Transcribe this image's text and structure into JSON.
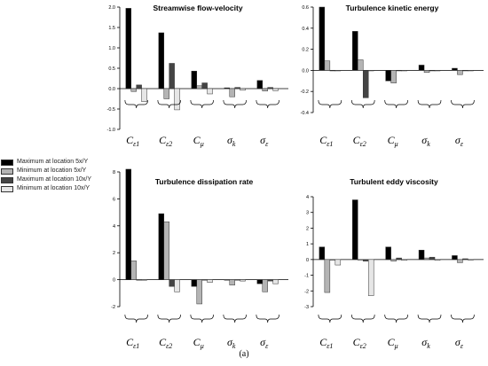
{
  "colors": {
    "max_5": "#000000",
    "min_5": "#b4b4b4",
    "max_10": "#444444",
    "min_10": "#e6e6e6"
  },
  "legend": [
    {
      "label": "Maximum at location 5x/Y",
      "color": "#000000"
    },
    {
      "label": "Minimum at location 5x/Y",
      "color": "#b4b4b4"
    },
    {
      "label": "Maximum at location 10x/Y",
      "color": "#444444"
    },
    {
      "label": "Minimum at location 10x/Y",
      "color": "#e6e6e6"
    }
  ],
  "caption": "(a)",
  "chart_data": [
    {
      "type": "bar",
      "title": "Streamwise flow-velocity",
      "categories": [
        "Cε1",
        "Cε2",
        "Cμ",
        "σk",
        "σε"
      ],
      "ylim": [
        -1.0,
        2.0
      ],
      "yticks": [
        "-1.0",
        "-0.5",
        "0.0",
        "0.5",
        "1.0",
        "1.5",
        "2.0"
      ],
      "series": [
        {
          "name": "Maximum at location 5x/Y",
          "values": [
            1.97,
            1.37,
            0.43,
            0.02,
            0.2
          ]
        },
        {
          "name": "Minimum at location 5x/Y",
          "values": [
            -0.07,
            -0.25,
            0.07,
            -0.2,
            -0.06
          ]
        },
        {
          "name": "Maximum at location 10x/Y",
          "values": [
            0.09,
            0.62,
            0.14,
            0.03,
            0.03
          ]
        },
        {
          "name": "Minimum at location 10x/Y",
          "values": [
            -0.32,
            -0.52,
            -0.13,
            -0.04,
            -0.05
          ]
        }
      ]
    },
    {
      "type": "bar",
      "title": "Turbulence kinetic energy",
      "categories": [
        "Cε1",
        "Cε2",
        "Cμ",
        "σk",
        "σε"
      ],
      "ylim": [
        -0.4,
        0.6
      ],
      "yticks": [
        "-0.4",
        "-0.2",
        "0.0",
        "0.2",
        "0.4",
        "0.6"
      ],
      "series": [
        {
          "name": "Maximum at location 5x/Y",
          "values": [
            0.6,
            0.37,
            -0.1,
            0.05,
            0.02
          ]
        },
        {
          "name": "Minimum at location 5x/Y",
          "values": [
            0.09,
            0.1,
            -0.12,
            -0.02,
            -0.04
          ]
        },
        {
          "name": "Maximum at location 10x/Y",
          "values": [
            0.0,
            -0.26,
            0.0,
            0.0,
            0.0
          ]
        },
        {
          "name": "Minimum at location 10x/Y",
          "values": [
            0.0,
            0.0,
            0.0,
            0.0,
            0.0
          ]
        }
      ]
    },
    {
      "type": "bar",
      "title": "Turbulence dissipation rate",
      "categories": [
        "Cε1",
        "Cε2",
        "Cμ",
        "σk",
        "σε"
      ],
      "ylim": [
        -2,
        8
      ],
      "yticks": [
        "-2",
        "0",
        "2",
        "4",
        "6",
        "8"
      ],
      "series": [
        {
          "name": "Maximum at location 5x/Y",
          "values": [
            8.2,
            4.9,
            -0.5,
            0.0,
            -0.3
          ]
        },
        {
          "name": "Minimum at location 5x/Y",
          "values": [
            1.4,
            4.3,
            -1.8,
            -0.4,
            -0.9
          ]
        },
        {
          "name": "Maximum at location 10x/Y",
          "values": [
            0.0,
            -0.5,
            0.0,
            0.0,
            -0.1
          ]
        },
        {
          "name": "Minimum at location 10x/Y",
          "values": [
            0.0,
            -0.9,
            -0.2,
            -0.1,
            -0.3
          ]
        }
      ]
    },
    {
      "type": "bar",
      "title": "Turbulent eddy viscosity",
      "categories": [
        "Cε1",
        "Cε2",
        "Cμ",
        "σk",
        "σε"
      ],
      "ylim": [
        -3,
        4
      ],
      "yticks": [
        "-3",
        "-2",
        "-1",
        "0",
        "1",
        "2",
        "3",
        "4"
      ],
      "series": [
        {
          "name": "Maximum at location 5x/Y",
          "values": [
            0.8,
            3.8,
            0.8,
            0.6,
            0.25
          ]
        },
        {
          "name": "Minimum at location 5x/Y",
          "values": [
            -2.1,
            0.0,
            -0.1,
            0.1,
            -0.2
          ]
        },
        {
          "name": "Maximum at location 10x/Y",
          "values": [
            0.0,
            -0.1,
            0.1,
            0.15,
            0.05
          ]
        },
        {
          "name": "Minimum at location 10x/Y",
          "values": [
            -0.35,
            -2.3,
            -0.05,
            -0.05,
            0.0
          ]
        }
      ]
    }
  ]
}
